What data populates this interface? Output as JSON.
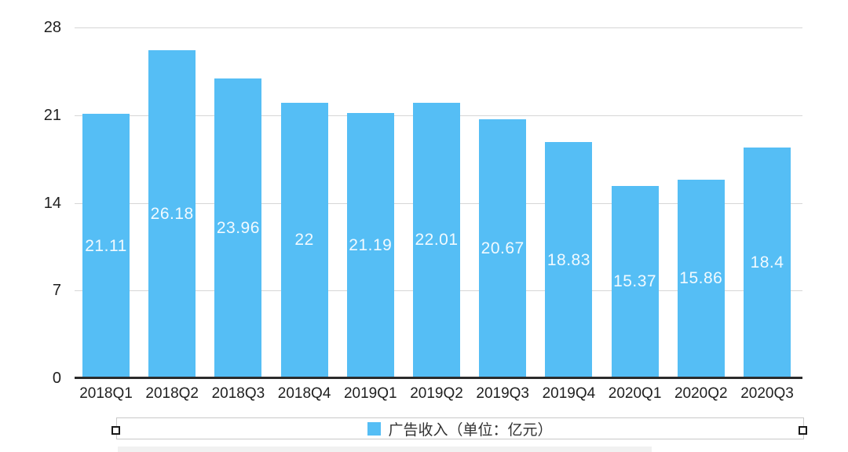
{
  "chart_data": {
    "type": "bar",
    "title": "",
    "xlabel": "",
    "ylabel": "",
    "categories": [
      "2018Q1",
      "2018Q2",
      "2018Q3",
      "2018Q4",
      "2019Q1",
      "2019Q2",
      "2019Q3",
      "2019Q4",
      "2020Q1",
      "2020Q2",
      "2020Q3"
    ],
    "values": [
      21.11,
      26.18,
      23.96,
      22,
      21.19,
      22.01,
      20.67,
      18.83,
      15.37,
      15.86,
      18.4
    ],
    "value_labels": [
      "21.11",
      "26.18",
      "23.96",
      "22",
      "21.19",
      "22.01",
      "20.67",
      "18.83",
      "15.37",
      "15.86",
      "18.4"
    ],
    "ylim": [
      0,
      28
    ],
    "yticks": [
      0,
      7,
      14,
      21,
      28
    ],
    "grid": true,
    "legend_position": "bottom",
    "legend": {
      "label": "广告收入（单位：亿元）"
    }
  },
  "colors": {
    "bar": "#55bef5",
    "grid_line": "#d6d6d6",
    "axis_line": "#2b2b2b",
    "axis_text": "#1f1f1f",
    "value_text": "#ffffff",
    "legend_border": "#c9c9c9"
  }
}
